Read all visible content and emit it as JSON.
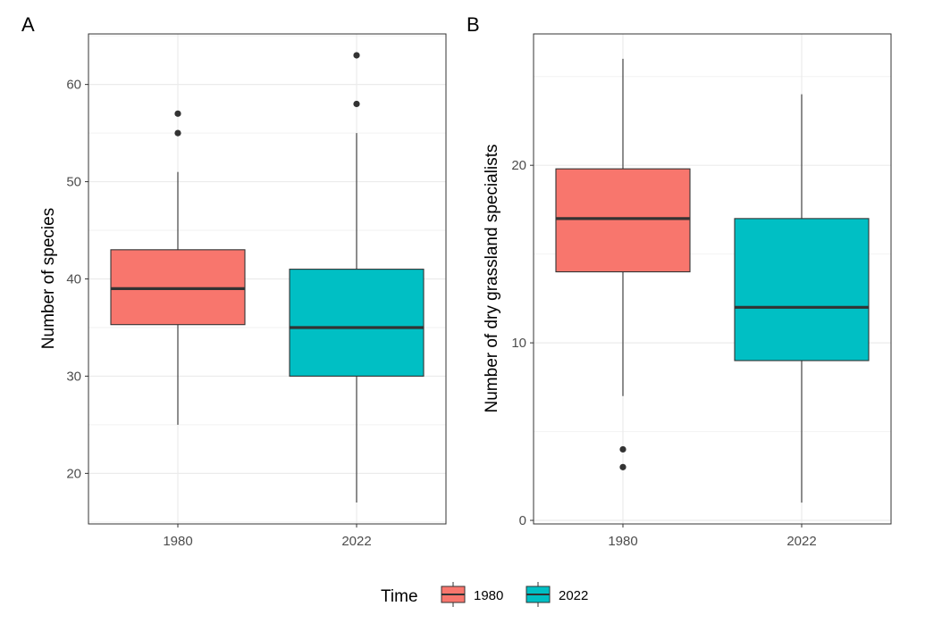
{
  "legend": {
    "title": "Time",
    "entries": [
      {
        "label": "1980",
        "color": "#F8766D"
      },
      {
        "label": "2022",
        "color": "#00BFC4"
      }
    ]
  },
  "chart_data": [
    {
      "type": "boxplot",
      "panel": "A",
      "xlabel": "",
      "ylabel": "Number of species",
      "ylim": [
        14.8,
        65.2
      ],
      "yticks": [
        20,
        30,
        40,
        50,
        60
      ],
      "grid": true,
      "categories": [
        "1980",
        "2022"
      ],
      "boxes": [
        {
          "category": "1980",
          "color": "#F8766D",
          "whisker_low": 25,
          "q1": 35.3,
          "median": 39,
          "q3": 43,
          "whisker_high": 51,
          "outliers": [
            55,
            57
          ]
        },
        {
          "category": "2022",
          "color": "#00BFC4",
          "whisker_low": 17,
          "q1": 30,
          "median": 35,
          "q3": 41,
          "whisker_high": 55,
          "outliers": [
            58,
            63
          ]
        }
      ]
    },
    {
      "type": "boxplot",
      "panel": "B",
      "xlabel": "",
      "ylabel": "Number of dry grassland specialists",
      "ylim": [
        -0.2,
        27.4
      ],
      "yticks": [
        0,
        10,
        20
      ],
      "grid": true,
      "categories": [
        "1980",
        "2022"
      ],
      "boxes": [
        {
          "category": "1980",
          "color": "#F8766D",
          "whisker_low": 7,
          "q1": 14,
          "median": 17,
          "q3": 19.8,
          "whisker_high": 26,
          "outliers": [
            3,
            4
          ]
        },
        {
          "category": "2022",
          "color": "#00BFC4",
          "whisker_low": 1,
          "q1": 9,
          "median": 12,
          "q3": 17,
          "whisker_high": 24,
          "outliers": []
        }
      ]
    }
  ]
}
